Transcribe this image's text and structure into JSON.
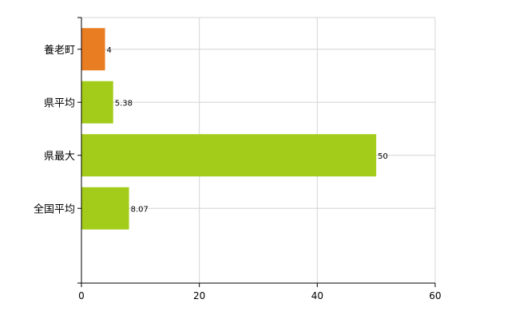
{
  "chart_data": {
    "type": "bar",
    "orientation": "horizontal",
    "categories": [
      "養老町",
      "県平均",
      "県最大",
      "全国平均"
    ],
    "values": [
      4,
      5.38,
      50,
      8.07
    ],
    "data_labels": [
      "4",
      "5.38",
      "50",
      "8.07"
    ],
    "bar_colors": [
      "#e87d22",
      "#a3cc1a",
      "#a3cc1a",
      "#a3cc1a"
    ],
    "xlim": [
      0,
      60
    ],
    "x_ticks": [
      0,
      20,
      40,
      60
    ],
    "x_tick_labels": [
      "0",
      "20",
      "40",
      "60"
    ],
    "grid": true,
    "legend": false
  }
}
